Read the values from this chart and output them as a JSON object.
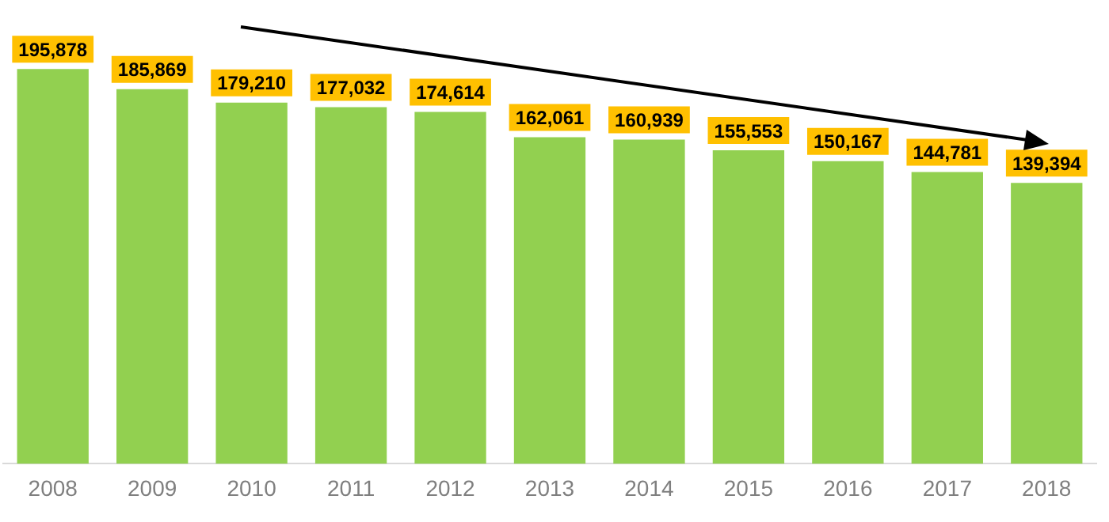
{
  "chart_data": {
    "type": "bar",
    "categories": [
      "2008",
      "2009",
      "2010",
      "2011",
      "2012",
      "2013",
      "2014",
      "2015",
      "2016",
      "2017",
      "2018"
    ],
    "values": [
      195878,
      185869,
      179210,
      177032,
      174614,
      162061,
      160939,
      155553,
      150167,
      144781,
      139394
    ],
    "value_labels": [
      "195,878",
      "185,869",
      "179,210",
      "177,032",
      "174,614",
      "162,061",
      "160,939",
      "155,553",
      "150,167",
      "144,781",
      "139,394"
    ],
    "color": "#92d050",
    "grid": false,
    "legend": false,
    "tick_labels": "x"
  }
}
